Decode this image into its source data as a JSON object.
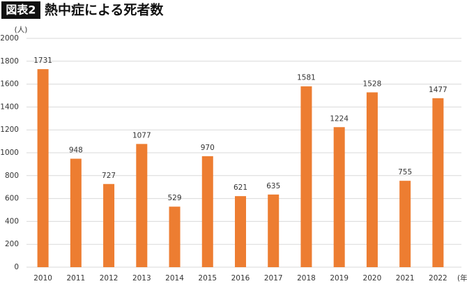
{
  "chart_data": {
    "type": "bar",
    "badge": "図表2",
    "title": "熱中症による死者数",
    "y_unit": "(人)",
    "x_unit": "(年)",
    "categories": [
      "2010",
      "2011",
      "2012",
      "2013",
      "2014",
      "2015",
      "2016",
      "2017",
      "2018",
      "2019",
      "2020",
      "2021",
      "2022"
    ],
    "values": [
      1731,
      948,
      727,
      1077,
      529,
      970,
      621,
      635,
      1581,
      1224,
      1528,
      755,
      1477
    ],
    "color": "#ed7d31",
    "ylim": [
      0,
      2000
    ],
    "yticks": [
      0,
      200,
      400,
      600,
      800,
      1000,
      1200,
      1400,
      1600,
      1800,
      2000
    ],
    "grid": true
  }
}
